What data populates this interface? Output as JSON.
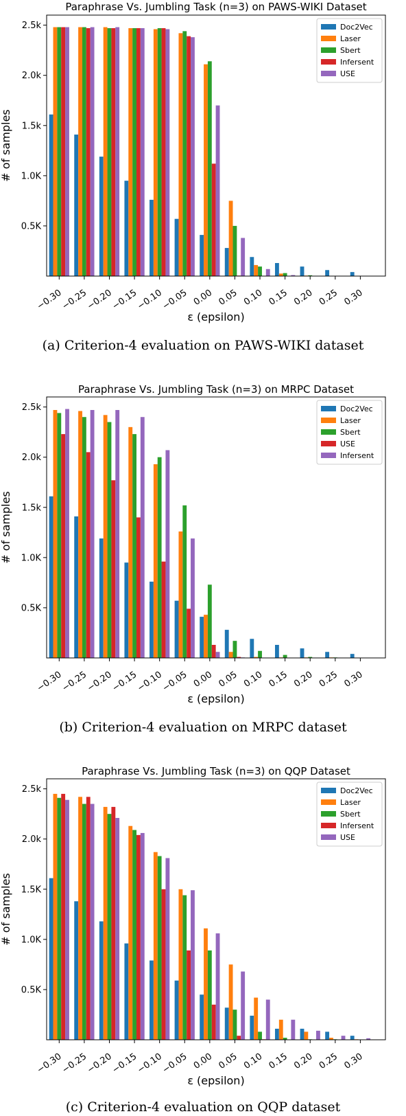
{
  "colors": {
    "blue": "#1f77b4",
    "orange": "#ff7f0e",
    "green": "#2ca02c",
    "red": "#d62728",
    "purple": "#9467bd"
  },
  "chart_data": [
    {
      "type": "bar",
      "title": "Paraphrase Vs. Jumbling Task (n=3) on PAWS-WIKI Dataset",
      "caption": "(a) Criterion-4 evaluation on PAWS-WIKI dataset",
      "xlabel": "ε (epsilon)",
      "ylabel": "# of samples",
      "ylim": [
        0,
        2600
      ],
      "yticks": [
        500,
        1000,
        1500,
        2000,
        2500
      ],
      "yticklabels": [
        "0.5K",
        "1.0K",
        "1.5k",
        "2.0k",
        "2.5k"
      ],
      "legend_position": "top-right",
      "categories": [
        "−0.30",
        "−0.25",
        "−0.20",
        "−0.15",
        "−0.10",
        "−0.05",
        "0.00",
        "0.05",
        "0.10",
        "0.15",
        "0.20",
        "0.25",
        "0.30"
      ],
      "series": [
        {
          "name": "Doc2Vec",
          "color": "#1f77b4",
          "values": [
            1610,
            1410,
            1190,
            950,
            760,
            570,
            410,
            280,
            190,
            130,
            95,
            60,
            40
          ]
        },
        {
          "name": "Laser",
          "color": "#ff7f0e",
          "values": [
            2480,
            2480,
            2480,
            2470,
            2460,
            2420,
            2110,
            750,
            110,
            25,
            5,
            0,
            0
          ]
        },
        {
          "name": "Sbert",
          "color": "#2ca02c",
          "values": [
            2480,
            2480,
            2470,
            2470,
            2470,
            2440,
            2140,
            500,
            95,
            30,
            8,
            0,
            0
          ]
        },
        {
          "name": "Infersent",
          "color": "#d62728",
          "values": [
            2480,
            2470,
            2470,
            2470,
            2470,
            2390,
            1120,
            5,
            0,
            0,
            0,
            0,
            0
          ]
        },
        {
          "name": "USE",
          "color": "#9467bd",
          "values": [
            2480,
            2480,
            2480,
            2470,
            2460,
            2380,
            1700,
            380,
            70,
            10,
            0,
            0,
            0
          ]
        }
      ]
    },
    {
      "type": "bar",
      "title": "Paraphrase Vs. Jumbling Task (n=3) on MRPC Dataset",
      "caption": "(b) Criterion-4 evaluation on MRPC dataset",
      "xlabel": "ε (epsilon)",
      "ylabel": "# of samples",
      "ylim": [
        0,
        2600
      ],
      "yticks": [
        500,
        1000,
        1500,
        2000,
        2500
      ],
      "yticklabels": [
        "0.5K",
        "1.0K",
        "1.5k",
        "2.0k",
        "2.5k"
      ],
      "legend_position": "top-right",
      "categories": [
        "−0.30",
        "−0.25",
        "−0.20",
        "−0.15",
        "−0.10",
        "−0.05",
        "0.00",
        "0.05",
        "0.10",
        "0.15",
        "0.20",
        "0.25",
        "0.30"
      ],
      "series": [
        {
          "name": "Doc2Vec",
          "color": "#1f77b4",
          "values": [
            1610,
            1410,
            1190,
            950,
            760,
            570,
            410,
            280,
            190,
            130,
            95,
            60,
            40
          ]
        },
        {
          "name": "Laser",
          "color": "#ff7f0e",
          "values": [
            2470,
            2460,
            2420,
            2300,
            1930,
            1260,
            430,
            60,
            10,
            5,
            5,
            5,
            0
          ]
        },
        {
          "name": "Sbert",
          "color": "#2ca02c",
          "values": [
            2440,
            2400,
            2350,
            2230,
            2000,
            1520,
            730,
            170,
            70,
            30,
            10,
            5,
            0
          ]
        },
        {
          "name": "USE",
          "color": "#d62728",
          "values": [
            2230,
            2050,
            1770,
            1400,
            960,
            490,
            130,
            10,
            0,
            0,
            0,
            0,
            0
          ]
        },
        {
          "name": "Infersent",
          "color": "#9467bd",
          "values": [
            2480,
            2470,
            2470,
            2400,
            2070,
            1190,
            60,
            5,
            0,
            0,
            0,
            0,
            0
          ]
        }
      ]
    },
    {
      "type": "bar",
      "title": "Paraphrase Vs. Jumbling Task (n=3) on QQP Dataset",
      "caption": "(c) Criterion-4 evaluation on QQP dataset",
      "xlabel": "ε (epsilon)",
      "ylabel": "# of samples",
      "ylim": [
        0,
        2600
      ],
      "yticks": [
        500,
        1000,
        1500,
        2000,
        2500
      ],
      "yticklabels": [
        "0.5K",
        "1.0K",
        "1.5K",
        "2.0k",
        "2.5k"
      ],
      "legend_position": "top-right",
      "categories": [
        "−0.30",
        "−0.25",
        "−0.20",
        "−0.15",
        "−0.10",
        "−0.05",
        "0.00",
        "0.05",
        "0.10",
        "0.15",
        "0.20",
        "0.25",
        "0.30"
      ],
      "series": [
        {
          "name": "Doc2Vec",
          "color": "#1f77b4",
          "values": [
            1610,
            1380,
            1180,
            960,
            790,
            590,
            450,
            320,
            240,
            110,
            110,
            80,
            40
          ]
        },
        {
          "name": "Laser",
          "color": "#ff7f0e",
          "values": [
            2450,
            2420,
            2320,
            2130,
            1870,
            1500,
            1110,
            750,
            420,
            200,
            80,
            20,
            5
          ]
        },
        {
          "name": "Sbert",
          "color": "#2ca02c",
          "values": [
            2410,
            2350,
            2250,
            2090,
            1830,
            1440,
            890,
            300,
            80,
            20,
            5,
            5,
            0
          ]
        },
        {
          "name": "Infersent",
          "color": "#d62728",
          "values": [
            2450,
            2420,
            2320,
            2040,
            1500,
            890,
            350,
            40,
            5,
            0,
            0,
            0,
            0
          ]
        },
        {
          "name": "USE",
          "color": "#9467bd",
          "values": [
            2390,
            2350,
            2210,
            2060,
            1810,
            1490,
            1060,
            680,
            400,
            200,
            90,
            40,
            15
          ]
        }
      ]
    }
  ]
}
